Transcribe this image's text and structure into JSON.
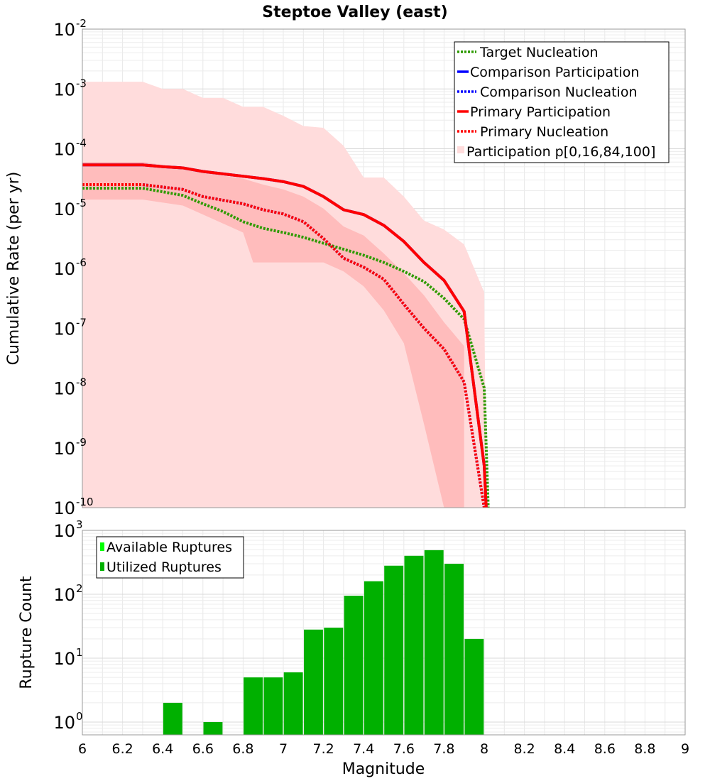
{
  "chart_data": [
    {
      "type": "line",
      "title": "Steptoe Valley (east)",
      "xlabel": "",
      "ylabel": "Cumulative Rate (per yr)",
      "xlim": [
        6,
        9
      ],
      "ylim_log10": [
        -10,
        -2
      ],
      "yscale": "log",
      "y_tick_exponents": [
        -10,
        -9,
        -8,
        -7,
        -6,
        -5,
        -4,
        -3,
        -2
      ],
      "grid": true,
      "legend_position": "top-right",
      "legend": [
        {
          "label": "Target Nucleation",
          "color": "#2e9a00",
          "style": "dotted"
        },
        {
          "label": "Comparison Participation",
          "color": "#0000ff",
          "style": "solid"
        },
        {
          "label": "Comparison Nucleation",
          "color": "#0000ff",
          "style": "dotted"
        },
        {
          "label": "Primary Participation",
          "color": "#ff0000",
          "style": "solid"
        },
        {
          "label": "Primary Nucleation",
          "color": "#ff0000",
          "style": "dotted"
        },
        {
          "label": "Participation p[0,16,84,100]",
          "color": "#ffdcdc",
          "style": "fill"
        }
      ],
      "bands": [
        {
          "name": "p0-p100",
          "color": "#ffdcdc",
          "x": [
            6.0,
            6.1,
            6.2,
            6.3,
            6.4,
            6.5,
            6.6,
            6.7,
            6.8,
            6.9,
            7.0,
            7.1,
            7.2,
            7.3,
            7.4,
            7.5,
            7.6,
            7.7,
            7.8,
            7.9,
            8.0,
            8.01
          ],
          "upper": [
            -2.88,
            -2.88,
            -2.88,
            -2.88,
            -3.0,
            -3.0,
            -3.15,
            -3.15,
            -3.3,
            -3.3,
            -3.45,
            -3.62,
            -3.65,
            -3.95,
            -4.48,
            -4.48,
            -4.8,
            -5.2,
            -5.35,
            -5.6,
            -6.4,
            -10
          ],
          "lower": [
            -10,
            -10,
            -10,
            -10,
            -10,
            -10,
            -10,
            -10,
            -10,
            -10,
            -10,
            -10,
            -10,
            -10,
            -10,
            -10,
            -10,
            -10,
            -10,
            -10,
            -10,
            -10
          ]
        },
        {
          "name": "p16-p84",
          "color": "#ffbcbc",
          "x": [
            6.0,
            6.3,
            6.5,
            6.6,
            6.8,
            6.85,
            6.9,
            7.0,
            7.1,
            7.2,
            7.3,
            7.4,
            7.5,
            7.6,
            7.7,
            7.8,
            7.9
          ],
          "upper": [
            -4.22,
            -4.22,
            -4.32,
            -4.4,
            -4.5,
            -4.55,
            -4.6,
            -4.68,
            -4.8,
            -5.0,
            -5.3,
            -5.45,
            -5.75,
            -6.08,
            -6.45,
            -6.9,
            -7.3
          ],
          "lower": [
            -4.85,
            -4.85,
            -4.95,
            -5.1,
            -5.4,
            -5.9,
            -5.9,
            -5.9,
            -5.9,
            -5.9,
            -6.05,
            -6.3,
            -6.7,
            -7.25,
            -8.6,
            -10,
            -10
          ]
        }
      ],
      "series": [
        {
          "name": "Target Nucleation",
          "color": "#2e9a00",
          "dash": "dotted",
          "x": [
            6.0,
            6.1,
            6.2,
            6.3,
            6.4,
            6.5,
            6.6,
            6.7,
            6.8,
            6.9,
            7.0,
            7.1,
            7.2,
            7.3,
            7.4,
            7.5,
            7.6,
            7.7,
            7.8,
            7.9,
            8.0,
            8.02
          ],
          "log10_y": [
            -4.66,
            -4.66,
            -4.66,
            -4.66,
            -4.72,
            -4.78,
            -4.92,
            -5.05,
            -5.22,
            -5.33,
            -5.4,
            -5.48,
            -5.58,
            -5.68,
            -5.78,
            -5.9,
            -6.05,
            -6.22,
            -6.5,
            -6.85,
            -8.0,
            -10
          ]
        },
        {
          "name": "Comparison Participation",
          "color": "#0000ff",
          "dash": "solid",
          "x": [
            6.0,
            6.3,
            6.4,
            6.5,
            6.6,
            6.7,
            6.8,
            6.9,
            7.0,
            7.1,
            7.2,
            7.3,
            7.4,
            7.5,
            7.6,
            7.7,
            7.8,
            7.9,
            8.0,
            8.01
          ],
          "log10_y": [
            -4.27,
            -4.27,
            -4.3,
            -4.32,
            -4.38,
            -4.42,
            -4.46,
            -4.5,
            -4.55,
            -4.63,
            -4.8,
            -5.02,
            -5.1,
            -5.28,
            -5.55,
            -5.9,
            -6.2,
            -6.72,
            -9.3,
            -10
          ]
        },
        {
          "name": "Comparison Nucleation",
          "color": "#0000ff",
          "dash": "dotted",
          "x": [
            6.0,
            6.3,
            6.4,
            6.5,
            6.6,
            6.7,
            6.8,
            6.9,
            7.0,
            7.1,
            7.2,
            7.3,
            7.4,
            7.5,
            7.6,
            7.7,
            7.8,
            7.9,
            8.0
          ],
          "log10_y": [
            -4.6,
            -4.6,
            -4.64,
            -4.68,
            -4.8,
            -4.86,
            -4.92,
            -5.02,
            -5.09,
            -5.22,
            -5.5,
            -5.83,
            -5.98,
            -6.18,
            -6.6,
            -7.0,
            -7.35,
            -7.9,
            -10
          ]
        },
        {
          "name": "Primary Participation",
          "color": "#ff0000",
          "dash": "solid",
          "x": [
            6.0,
            6.3,
            6.4,
            6.5,
            6.6,
            6.7,
            6.8,
            6.9,
            7.0,
            7.1,
            7.2,
            7.3,
            7.4,
            7.5,
            7.6,
            7.7,
            7.8,
            7.9,
            8.0,
            8.01
          ],
          "log10_y": [
            -4.27,
            -4.27,
            -4.3,
            -4.32,
            -4.38,
            -4.42,
            -4.46,
            -4.5,
            -4.55,
            -4.63,
            -4.8,
            -5.02,
            -5.1,
            -5.28,
            -5.55,
            -5.9,
            -6.2,
            -6.72,
            -9.3,
            -10
          ]
        },
        {
          "name": "Primary Nucleation",
          "color": "#ff0000",
          "dash": "dotted",
          "x": [
            6.0,
            6.3,
            6.4,
            6.5,
            6.6,
            6.7,
            6.8,
            6.9,
            7.0,
            7.1,
            7.2,
            7.3,
            7.4,
            7.5,
            7.6,
            7.7,
            7.8,
            7.9,
            8.0
          ],
          "log10_y": [
            -4.6,
            -4.6,
            -4.64,
            -4.68,
            -4.8,
            -4.86,
            -4.92,
            -5.02,
            -5.09,
            -5.22,
            -5.5,
            -5.83,
            -5.98,
            -6.18,
            -6.6,
            -7.0,
            -7.35,
            -7.9,
            -10
          ]
        }
      ]
    },
    {
      "type": "bar",
      "title": "",
      "xlabel": "Magnitude",
      "ylabel": "Rupture Count",
      "xlim": [
        6,
        9
      ],
      "x_ticks": [
        "6",
        "6.2",
        "6.4",
        "6.6",
        "6.8",
        "7",
        "7.2",
        "7.4",
        "7.6",
        "7.8",
        "8",
        "8.2",
        "8.4",
        "8.6",
        "8.8",
        "9"
      ],
      "yscale": "log",
      "ylim_log10": [
        -0.2,
        3
      ],
      "y_tick_exponents": [
        0,
        1,
        2,
        3
      ],
      "grid": true,
      "legend_position": "top-left",
      "legend": [
        {
          "label": "Available Ruptures",
          "color": "#00ff00"
        },
        {
          "label": "Utilized Ruptures",
          "color": "#00b000"
        }
      ],
      "bar_width": 0.095,
      "series": [
        {
          "name": "Utilized Ruptures",
          "color": "#00b000",
          "x": [
            6.45,
            6.65,
            6.85,
            6.95,
            7.05,
            7.15,
            7.25,
            7.35,
            7.45,
            7.55,
            7.65,
            7.75,
            7.85,
            7.95
          ],
          "values": [
            2,
            1,
            5,
            5,
            6,
            28,
            30,
            95,
            160,
            280,
            400,
            490,
            300,
            20
          ]
        }
      ]
    }
  ]
}
